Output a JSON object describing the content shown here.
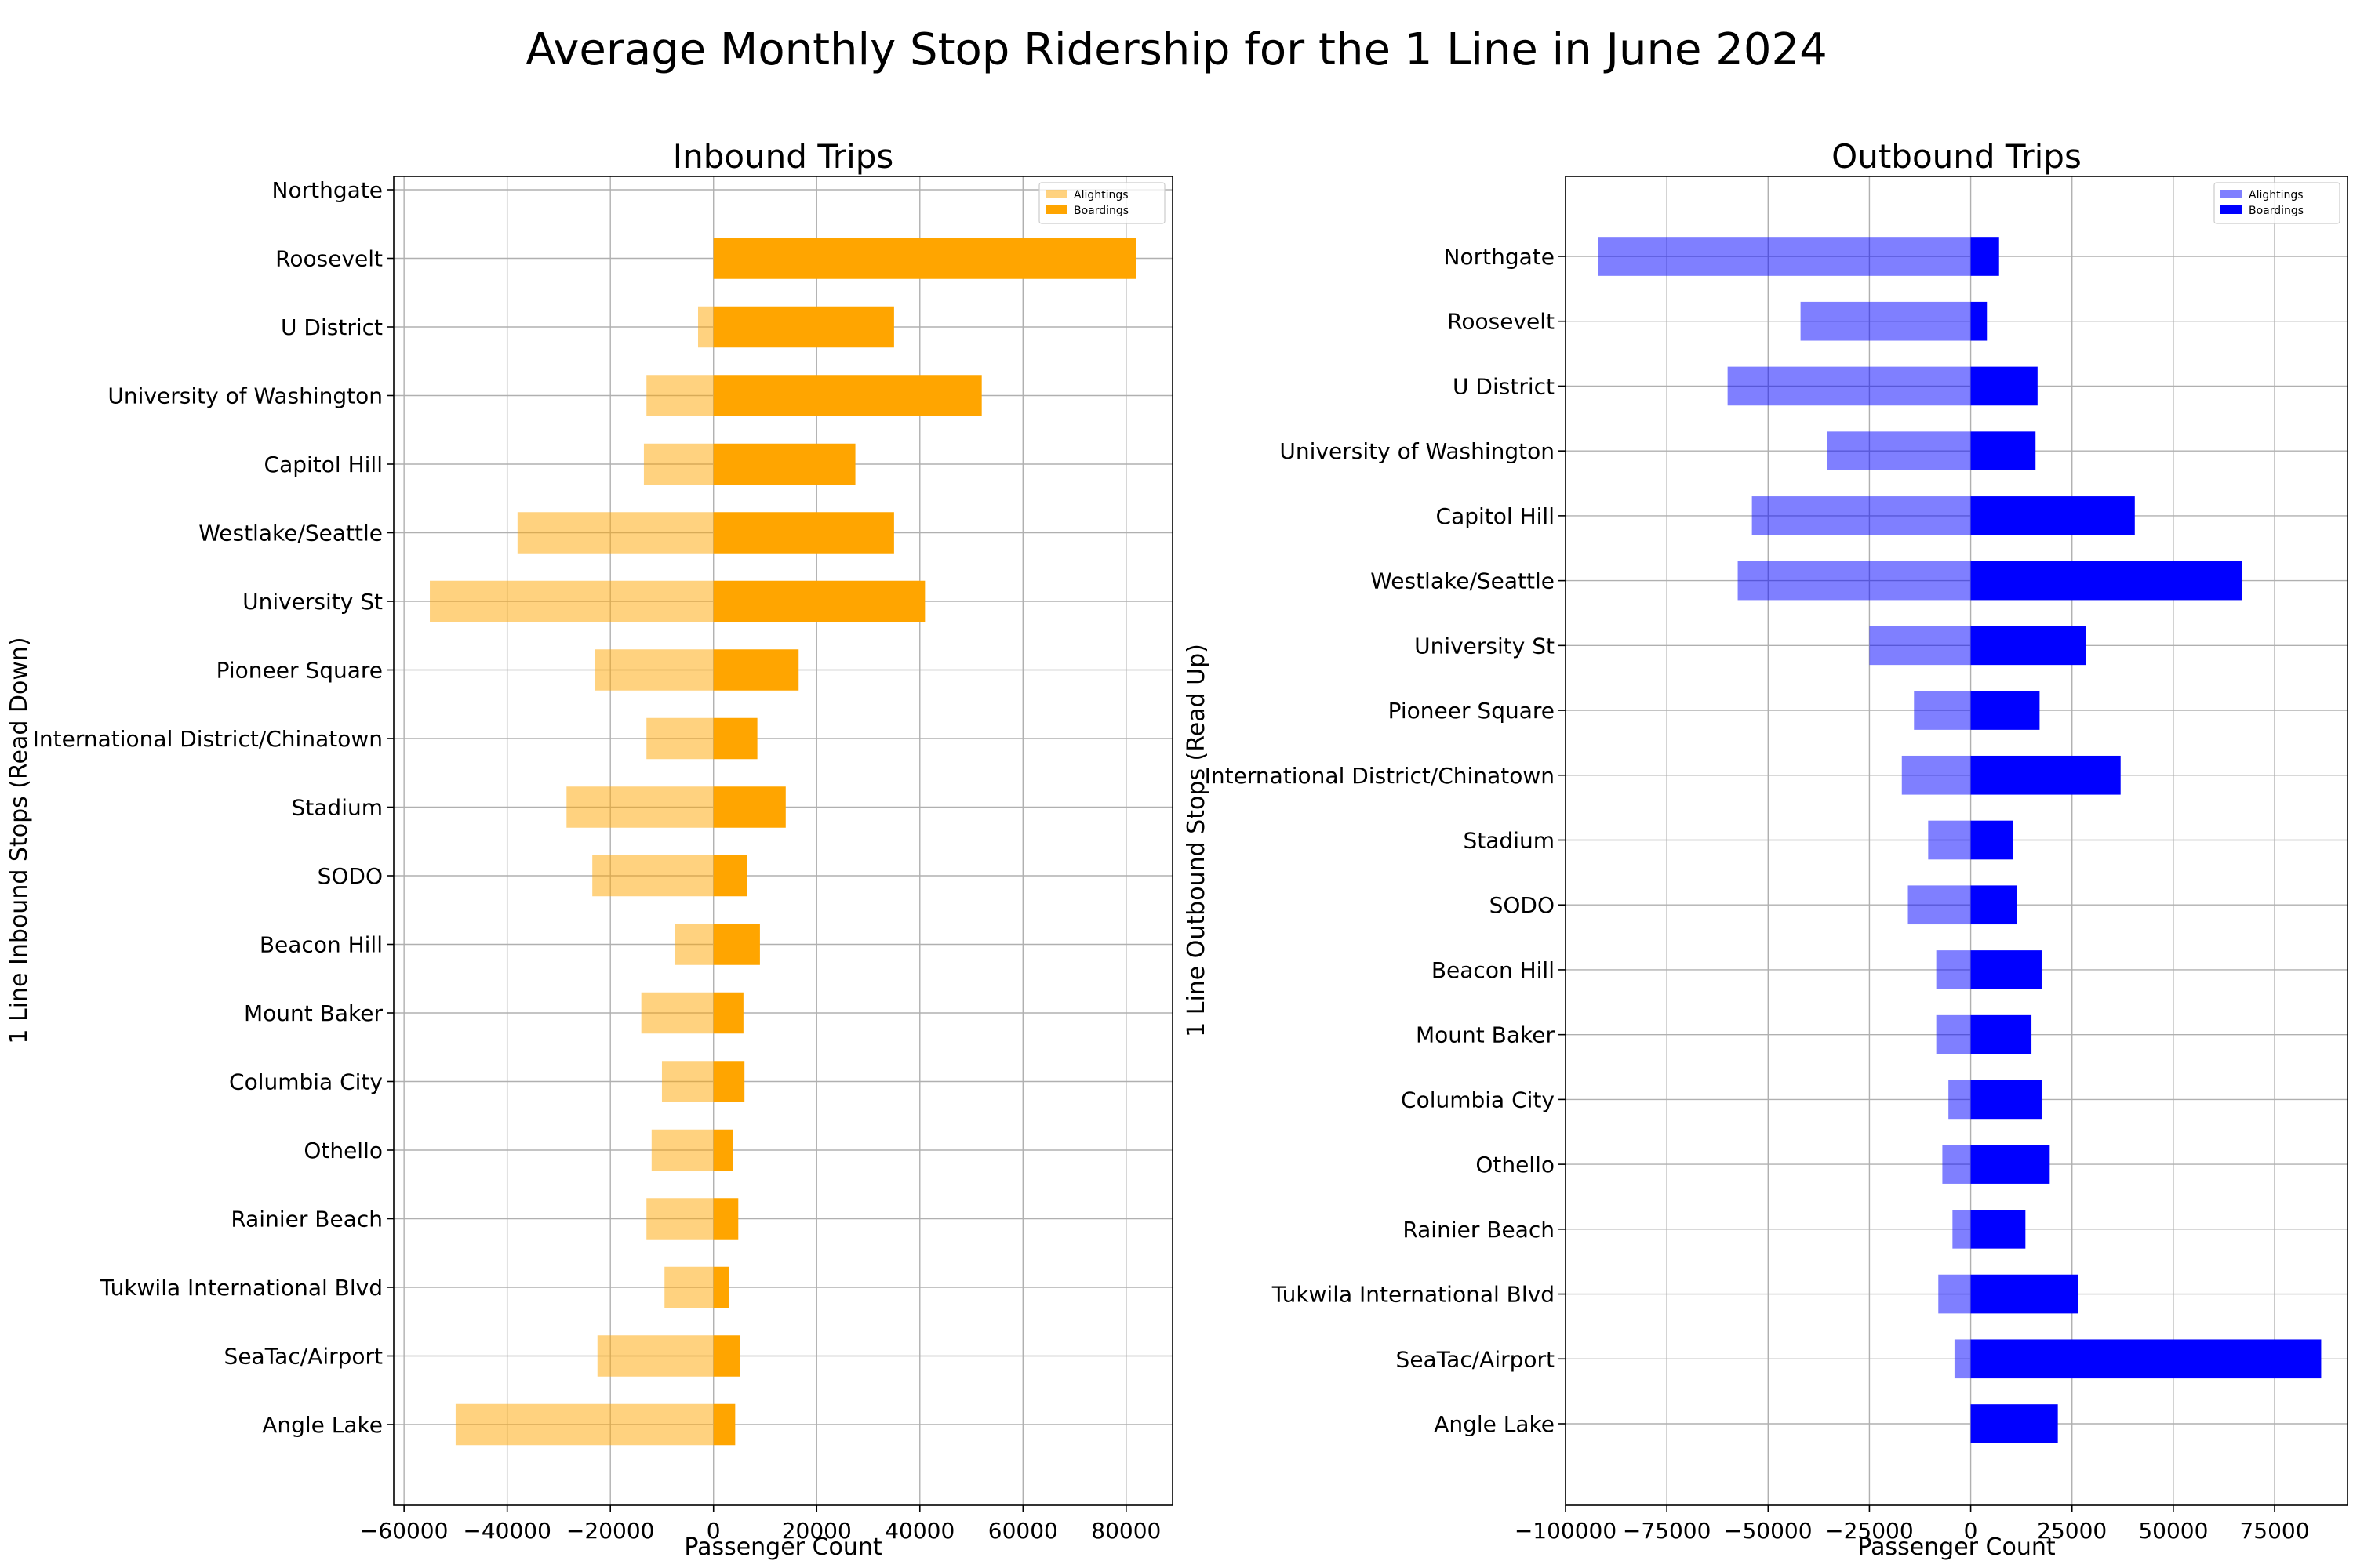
{
  "suptitle": "Average Monthly Stop Ridership for the 1 Line in June 2024",
  "chart_data": [
    {
      "type": "bar",
      "orientation": "horizontal",
      "title": "Inbound Trips",
      "xlabel": "Passenger Count",
      "ylabel": "1 Line Inbound Stops (Read Down)",
      "xlim": [
        -62000,
        89000
      ],
      "xticks": [
        -60000,
        -40000,
        -20000,
        0,
        20000,
        40000,
        60000,
        80000
      ],
      "xtick_labels": [
        "−60000",
        "−40000",
        "−20000",
        "0",
        "20000",
        "40000",
        "60000",
        "80000"
      ],
      "grid": true,
      "legend": "top-right",
      "categories": [
        "Northgate",
        "Roosevelt",
        "U District",
        "University of Washington",
        "Capitol Hill",
        "Westlake/Seattle",
        "University St",
        "Pioneer Square",
        "International District/Chinatown",
        "Stadium",
        "SODO",
        "Beacon Hill",
        "Mount Baker",
        "Columbia City",
        "Othello",
        "Rainier Beach",
        "Tukwila International Blvd",
        "SeaTac/Airport",
        "Angle Lake"
      ],
      "series": [
        {
          "name": "Alightings",
          "color": "#ffa500",
          "opacity": 0.5,
          "values": [
            0,
            0,
            -3000,
            -13000,
            -13500,
            -38000,
            -55000,
            -23000,
            -13000,
            -28500,
            -23500,
            -7500,
            -14000,
            -10000,
            -12000,
            -13000,
            -9500,
            -22500,
            -50000
          ]
        },
        {
          "name": "Boardings",
          "color": "#ffa500",
          "opacity": 1,
          "values": [
            0,
            82000,
            35000,
            52000,
            27500,
            35000,
            41000,
            16500,
            8500,
            14000,
            6500,
            9000,
            5800,
            6000,
            3800,
            4800,
            3000,
            5200,
            4200
          ]
        }
      ]
    },
    {
      "type": "bar",
      "orientation": "horizontal",
      "title": "Outbound Trips",
      "xlabel": "Passenger Count",
      "ylabel": "1 Line Outbound Stops (Read Up)",
      "xlim": [
        -100000,
        93000
      ],
      "xticks": [
        -100000,
        -75000,
        -50000,
        -25000,
        0,
        25000,
        50000,
        75000
      ],
      "xtick_labels": [
        "−100000",
        "−75000",
        "−50000",
        "−25000",
        "0",
        "25000",
        "50000",
        "75000"
      ],
      "grid": true,
      "legend": "top-right",
      "categories": [
        "Northgate",
        "Roosevelt",
        "U District",
        "University of Washington",
        "Capitol Hill",
        "Westlake/Seattle",
        "University St",
        "Pioneer Square",
        "International District/Chinatown",
        "Stadium",
        "SODO",
        "Beacon Hill",
        "Mount Baker",
        "Columbia City",
        "Othello",
        "Rainier Beach",
        "Tukwila International Blvd",
        "SeaTac/Airport",
        "Angle Lake"
      ],
      "series": [
        {
          "name": "Alightings",
          "color": "#0000ff",
          "opacity": 0.5,
          "values": [
            -92000,
            -42000,
            -60000,
            -35500,
            -54000,
            -57500,
            -25000,
            -14000,
            -17000,
            -10500,
            -15500,
            -8500,
            -8500,
            -5500,
            -7000,
            -4500,
            -8000,
            -4000,
            0
          ]
        },
        {
          "name": "Boardings",
          "color": "#0000ff",
          "opacity": 1,
          "values": [
            7000,
            4000,
            16500,
            16000,
            40500,
            67000,
            28500,
            17000,
            37000,
            10500,
            11500,
            17500,
            15000,
            17500,
            19500,
            13500,
            26500,
            86500,
            21500
          ]
        }
      ]
    }
  ]
}
